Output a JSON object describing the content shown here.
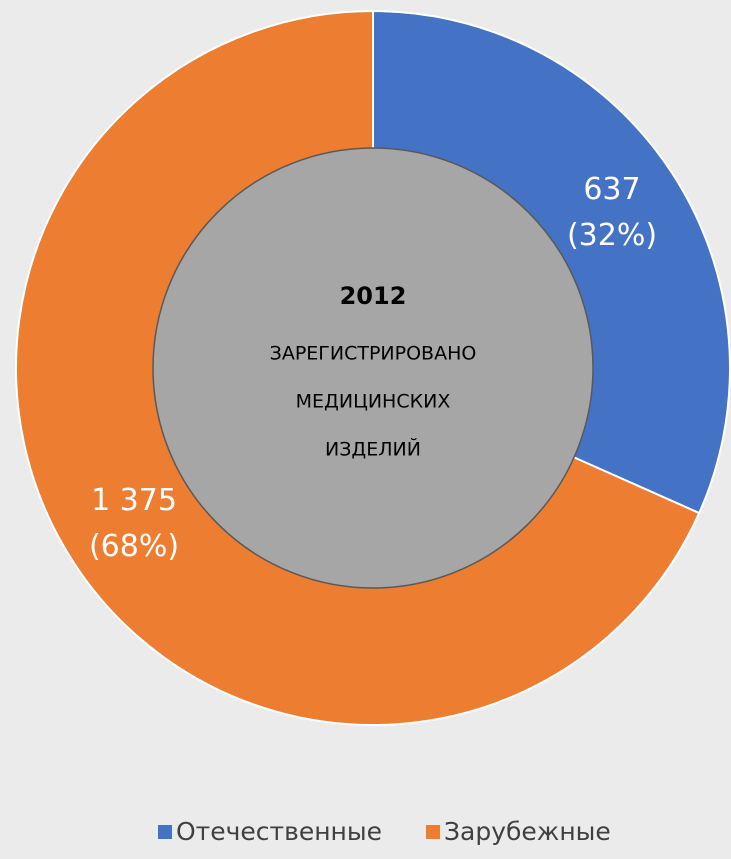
{
  "chart_data": {
    "type": "donut",
    "categories": [
      "Отечественные",
      "Зарубежные"
    ],
    "values": [
      637,
      1375
    ],
    "value_labels": [
      "637",
      "1 375"
    ],
    "percents": [
      32,
      68
    ],
    "percent_labels": [
      "(32%)",
      "(68%)"
    ],
    "colors": [
      "#4472c4",
      "#ed7d31"
    ],
    "center_title": "2012",
    "center_lines": [
      "ЗАРЕГИСТРИРОВАНО",
      "МЕДИЦИНСКИХ",
      "ИЗДЕЛИЙ"
    ],
    "legend": "bottom"
  }
}
